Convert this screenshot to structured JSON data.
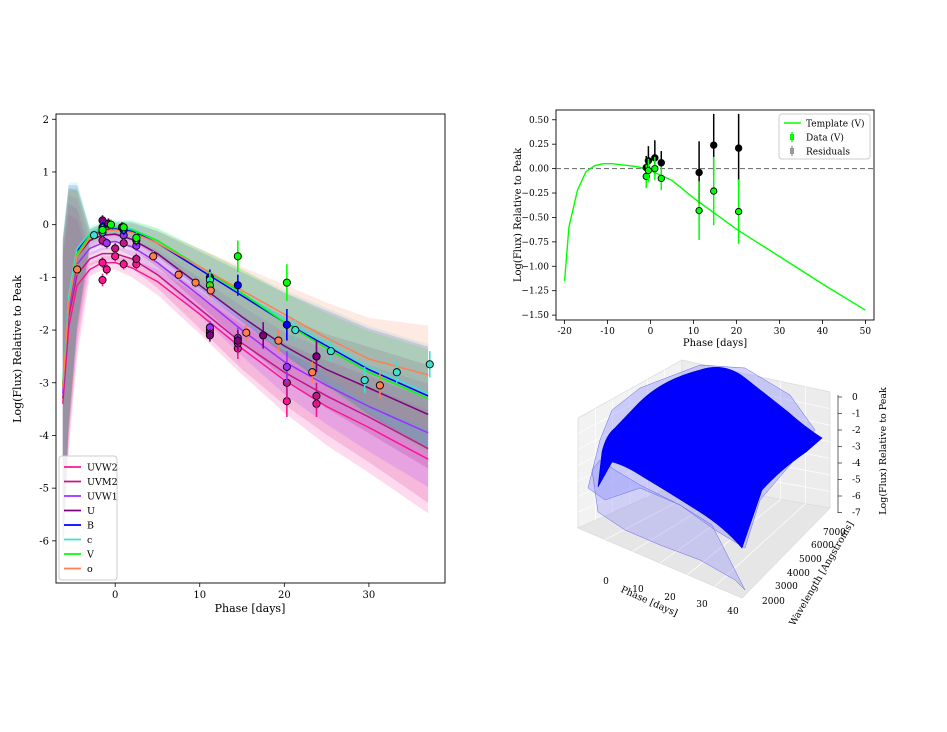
{
  "left_panel": {
    "xlabel": "Phase [days]",
    "ylabel": "Log(Flux) Relative to Peak",
    "xticks": [
      0,
      10,
      20,
      30
    ],
    "yticks": [
      2,
      1,
      0,
      -1,
      -2,
      -3,
      -4,
      -5,
      -6
    ],
    "legend": [
      {
        "label": "UVW2",
        "color": "#ff1493"
      },
      {
        "label": "UVM2",
        "color": "#c71585"
      },
      {
        "label": "UVW1",
        "color": "#9b30ff"
      },
      {
        "label": "U",
        "color": "#800080"
      },
      {
        "label": "B",
        "color": "#0000ff"
      },
      {
        "label": "c",
        "color": "#40e0d0"
      },
      {
        "label": "V",
        "color": "#00ff00"
      },
      {
        "label": "o",
        "color": "#ff7f50"
      }
    ]
  },
  "top_right_panel": {
    "xlabel": "Phase [days]",
    "ylabel": "Log(Flux) Relative to Peak",
    "xticks": [
      -20,
      -10,
      0,
      10,
      20,
      30,
      40,
      50
    ],
    "yticks": [
      "0.50",
      "0.25",
      "0.00",
      "−0.25",
      "−0.50",
      "−0.75",
      "−1.00",
      "−1.25",
      "−1.50"
    ],
    "legend": [
      {
        "label": "Template (V)",
        "color": "#00ff00"
      },
      {
        "label": "Data (V)",
        "color": "#00ff00"
      },
      {
        "label": "Residuals",
        "color": "#999999"
      }
    ]
  },
  "surface_panel": {
    "xlabel": "Phase [days]",
    "ylabel": "Wavelength [Angstroms]",
    "zlabel": "Log(Flux) Relative to Peak",
    "xticks": [
      0,
      10,
      20,
      30,
      40
    ],
    "yticks": [
      2000,
      3000,
      4000,
      5000,
      6000,
      7000
    ],
    "zticks": [
      0,
      -1,
      -2,
      -3,
      -4,
      -5,
      -6,
      -7
    ],
    "surface_color": "#0000ff"
  },
  "chart_data": [
    {
      "type": "line",
      "title": "",
      "xlabel": "Phase [days]",
      "ylabel": "Log(Flux) Relative to Peak",
      "xlim": [
        -7,
        39
      ],
      "ylim": [
        -6.8,
        2.1
      ],
      "series": [
        {
          "name": "UVW2",
          "color": "#ff1493",
          "model_x": [
            -6.2,
            -5.5,
            -4.5,
            -3,
            -1.5,
            0,
            2,
            5,
            10,
            15,
            20,
            25,
            30,
            37
          ],
          "model_y": [
            -3.4,
            -1.95,
            -1.15,
            -0.85,
            -0.72,
            -0.72,
            -0.82,
            -1.08,
            -1.7,
            -2.35,
            -2.95,
            -3.45,
            -3.85,
            -4.45
          ],
          "points": [
            [
              -1.5,
              -1.05
            ],
            [
              -1.5,
              -0.72
            ],
            [
              -1,
              -0.85
            ],
            [
              0,
              -0.6
            ],
            [
              1,
              -0.75
            ],
            [
              2.5,
              -0.75
            ],
            [
              11.2,
              -2.05
            ],
            [
              14.5,
              -2.35
            ],
            [
              20.3,
              -3.35
            ],
            [
              23.8,
              -3.4
            ]
          ],
          "errs": [
            0.12,
            0.1,
            0.1,
            0.1,
            0.1,
            0.1,
            0.12,
            0.2,
            0.3,
            0.25
          ]
        },
        {
          "name": "UVM2",
          "color": "#c71585",
          "model_x": [
            -6.2,
            -5.5,
            -4.5,
            -3,
            -1.5,
            0,
            2,
            5,
            10,
            15,
            20,
            25,
            30,
            37
          ],
          "model_y": [
            -3.3,
            -1.75,
            -0.95,
            -0.65,
            -0.55,
            -0.55,
            -0.65,
            -0.95,
            -1.6,
            -2.25,
            -2.8,
            -3.25,
            -3.65,
            -4.25
          ],
          "points": [
            [
              -1.5,
              -0.3
            ],
            [
              0,
              -0.45
            ],
            [
              1,
              -0.35
            ],
            [
              2.5,
              -0.65
            ],
            [
              11.2,
              -2.0
            ],
            [
              14.5,
              -2.25
            ],
            [
              20.3,
              -3.0
            ],
            [
              23.8,
              -3.25
            ]
          ],
          "errs": [
            0.1,
            0.1,
            0.1,
            0.1,
            0.12,
            0.2,
            0.3,
            0.25
          ]
        },
        {
          "name": "UVW1",
          "color": "#9b30ff",
          "model_x": [
            -6.2,
            -5.5,
            -4.5,
            -3,
            -1.5,
            0,
            2,
            5,
            10,
            15,
            20,
            25,
            30,
            37
          ],
          "model_y": [
            -3.2,
            -1.6,
            -0.75,
            -0.45,
            -0.35,
            -0.32,
            -0.42,
            -0.72,
            -1.35,
            -2.0,
            -2.6,
            -3.05,
            -3.45,
            -3.95
          ],
          "points": [
            [
              -1.5,
              -0.15
            ],
            [
              -1,
              -0.35
            ],
            [
              1,
              -0.2
            ],
            [
              2.5,
              -0.4
            ],
            [
              11.2,
              -1.95
            ],
            [
              14.5,
              -2.15
            ],
            [
              20.3,
              -2.7
            ],
            [
              23.8,
              -2.5
            ]
          ],
          "errs": [
            0.1,
            0.1,
            0.1,
            0.1,
            0.12,
            0.2,
            0.3,
            0.25
          ]
        },
        {
          "name": "U",
          "color": "#800080",
          "model_x": [
            -6.2,
            -5.5,
            -4.5,
            -3,
            -1.5,
            0,
            2,
            5,
            10,
            15,
            20,
            25,
            30,
            37
          ],
          "model_y": [
            -3.1,
            -1.45,
            -0.6,
            -0.3,
            -0.2,
            -0.18,
            -0.28,
            -0.55,
            -1.15,
            -1.75,
            -2.3,
            -2.75,
            -3.1,
            -3.6
          ],
          "points": [
            [
              -1.5,
              0.08
            ],
            [
              -0.8,
              0.02
            ],
            [
              0.8,
              -0.05
            ],
            [
              2.5,
              -0.3
            ],
            [
              11.2,
              -2.1
            ],
            [
              14.5,
              -2.2
            ],
            [
              17.5,
              -2.1
            ],
            [
              23.8,
              -2.5
            ]
          ],
          "errs": [
            0.1,
            0.1,
            0.1,
            0.1,
            0.12,
            0.2,
            0.25,
            0.3
          ]
        },
        {
          "name": "B",
          "color": "#0000ff",
          "model_x": [
            -6.2,
            -5.5,
            -4.5,
            -3,
            -1.5,
            0,
            2,
            5,
            10,
            15,
            20,
            25,
            30,
            37
          ],
          "model_y": [
            -3.05,
            -1.4,
            -0.5,
            -0.2,
            -0.1,
            -0.08,
            -0.12,
            -0.35,
            -0.85,
            -1.35,
            -1.85,
            -2.3,
            -2.75,
            -3.25
          ],
          "points": [
            [
              -1.5,
              -0.05
            ],
            [
              1,
              -0.1
            ],
            [
              11.2,
              -1.0
            ],
            [
              14.5,
              -1.15
            ],
            [
              20.3,
              -1.9
            ]
          ],
          "errs": [
            0.1,
            0.1,
            0.15,
            0.2,
            0.3
          ]
        },
        {
          "name": "c",
          "color": "#40e0d0",
          "model_x": [
            -6.2,
            -5.5,
            -4.5,
            -3,
            -1.5,
            0,
            2,
            5,
            10,
            15,
            20,
            25,
            30,
            37
          ],
          "model_y": [
            -3.0,
            -1.35,
            -0.45,
            -0.15,
            -0.05,
            -0.03,
            -0.08,
            -0.3,
            -0.8,
            -1.3,
            -1.8,
            -2.25,
            -2.7,
            -3.2
          ],
          "points": [
            [
              -2.5,
              -0.2
            ],
            [
              11.2,
              -1.05
            ],
            [
              21.3,
              -2.0
            ],
            [
              25.5,
              -2.4
            ],
            [
              29.5,
              -2.95
            ],
            [
              33.3,
              -2.8
            ],
            [
              37.2,
              -2.65
            ]
          ],
          "errs": [
            0.1,
            0.15,
            0.2,
            0.2,
            0.25,
            0.2,
            0.25
          ]
        },
        {
          "name": "V",
          "color": "#00ff00",
          "model_x": [
            -6.2,
            -5.5,
            -4.5,
            -3,
            -1.5,
            0,
            2,
            5,
            10,
            15,
            20,
            25,
            30,
            37
          ],
          "model_y": [
            -3.05,
            -1.5,
            -0.55,
            -0.2,
            -0.08,
            -0.05,
            -0.1,
            -0.3,
            -0.8,
            -1.3,
            -1.85,
            -2.35,
            -2.8,
            -3.3
          ],
          "points": [
            [
              -1.5,
              -0.1
            ],
            [
              -0.5,
              0.0
            ],
            [
              1.0,
              -0.05
            ],
            [
              2.5,
              -0.25
            ],
            [
              11.2,
              -1.15
            ],
            [
              14.5,
              -0.6
            ],
            [
              20.3,
              -1.1
            ]
          ],
          "errs": [
            0.1,
            0.1,
            0.1,
            0.1,
            0.2,
            0.3,
            0.35
          ]
        },
        {
          "name": "o",
          "color": "#ff7f50",
          "model_x": [
            -6.2,
            -5.5,
            -4.5,
            -3,
            -1.5,
            0,
            2,
            5,
            10,
            15,
            20,
            25,
            30,
            37
          ],
          "model_y": [
            -3.1,
            -1.5,
            -0.6,
            -0.25,
            -0.12,
            -0.1,
            -0.15,
            -0.35,
            -0.8,
            -1.25,
            -1.7,
            -2.15,
            -2.55,
            -2.85
          ],
          "points": [
            [
              -4.5,
              -0.85
            ],
            [
              4.5,
              -0.6
            ],
            [
              7.5,
              -0.95
            ],
            [
              9.5,
              -1.1
            ],
            [
              11.3,
              -1.25
            ],
            [
              15.5,
              -2.05
            ],
            [
              19.3,
              -2.2
            ],
            [
              23.3,
              -2.8
            ],
            [
              31.3,
              -3.05
            ]
          ],
          "errs": [
            0.1,
            0.1,
            0.1,
            0.1,
            0.12,
            0.15,
            0.2,
            0.2,
            0.25
          ]
        }
      ]
    },
    {
      "type": "line",
      "title": "",
      "xlabel": "Phase [days]",
      "ylabel": "Log(Flux) Relative to Peak",
      "xlim": [
        -22,
        52
      ],
      "ylim": [
        -1.55,
        0.6
      ],
      "template_x": [
        -20,
        -19,
        -17,
        -15,
        -13,
        -11,
        -9,
        -7,
        -5,
        -3,
        0,
        5,
        10,
        20,
        30,
        40,
        50
      ],
      "template_y": [
        -1.15,
        -0.6,
        -0.22,
        -0.03,
        0.03,
        0.05,
        0.05,
        0.04,
        0.03,
        0.02,
        -0.02,
        -0.12,
        -0.3,
        -0.62,
        -0.9,
        -1.18,
        -1.45
      ],
      "data_x": [
        -1,
        -0.5,
        1,
        2.5,
        11.3,
        14.7,
        20.5
      ],
      "data_y": [
        -0.08,
        -0.02,
        0.0,
        -0.1,
        -0.43,
        -0.23,
        -0.44
      ],
      "data_err": [
        0.12,
        0.12,
        0.12,
        0.12,
        0.3,
        0.35,
        0.33
      ],
      "residual_x": [
        -1,
        -0.5,
        1,
        2.5,
        11.3,
        14.7,
        20.5
      ],
      "residual_y": [
        0.01,
        0.08,
        0.11,
        0.06,
        -0.04,
        0.24,
        0.21
      ],
      "residual_err": [
        0.12,
        0.15,
        0.18,
        0.12,
        0.32,
        0.32,
        0.35
      ],
      "hline": 0.0
    },
    {
      "type": "surface",
      "title": "",
      "xlabel": "Phase [days]",
      "ylabel": "Wavelength [Angstroms]",
      "zlabel": "Log(Flux) Relative to Peak",
      "xlim": [
        -7,
        40
      ],
      "ylim": [
        1500,
        7800
      ],
      "zlim": [
        -7,
        0
      ]
    }
  ]
}
